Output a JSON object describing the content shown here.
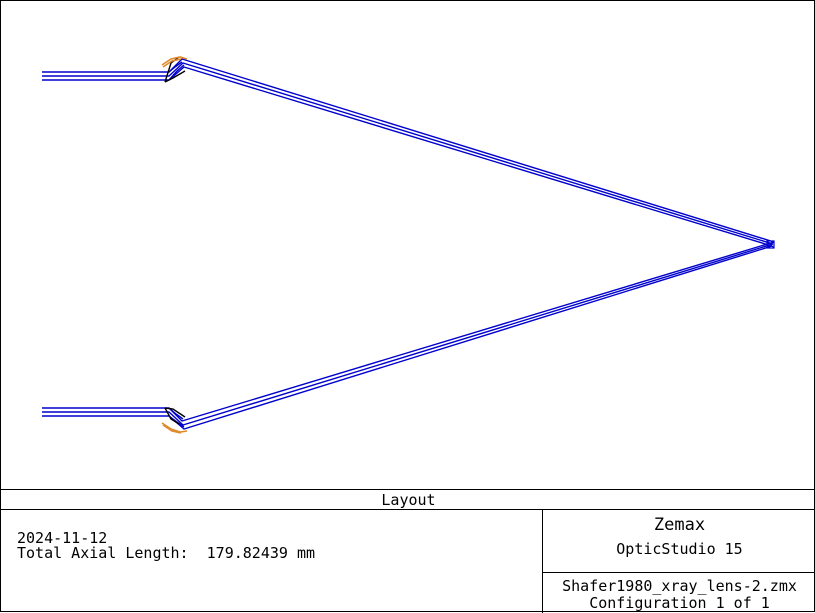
{
  "layout_title": "Layout",
  "info": {
    "date": "2024-11-12",
    "axial_length_label": "Total Axial Length:  179.82439 mm"
  },
  "branding": {
    "company": "Zemax",
    "product": "OpticStudio 15"
  },
  "file": {
    "name": "Shafer1980_xray_lens-2.zmx",
    "configuration": "Configuration 1 of 1"
  },
  "colors": {
    "ray": "#0000cc",
    "mirror": "#e08a2c",
    "surface": "#000000"
  }
}
